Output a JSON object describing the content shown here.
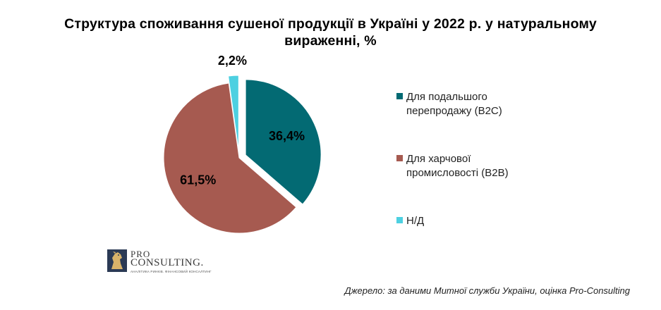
{
  "title": {
    "line1": "Структура  споживання  сушеної  продукції  в Україні  у 2022 р.  у натуральному",
    "line2": "вираженні,  %"
  },
  "chart_data": {
    "type": "pie",
    "title": "Структура  споживання  сушеної  продукції  в Україні  у 2022 р.  у натуральному вираженні,  %",
    "slices": [
      {
        "name": "Для подальшого перепродажу (B2C)",
        "value": 36.4,
        "label": "36,4%",
        "color": "#036a73"
      },
      {
        "name": "Для харчової промисловості (B2B)",
        "value": 61.5,
        "label": "61,5%",
        "color": "#a65a50"
      },
      {
        "name": "Н/Д",
        "value": 2.2,
        "label": "2,2%",
        "color": "#4dd0e1"
      }
    ],
    "legend_position": "right"
  },
  "legend": {
    "items": [
      {
        "line1": "Для подальшого",
        "line2": "перепродажу (B2C)",
        "color": "#036a73"
      },
      {
        "line1": "Для харчової",
        "line2": "промисловості (B2B)",
        "color": "#a65a50"
      },
      {
        "line1": "Н/Д",
        "line2": "",
        "color": "#4dd0e1"
      }
    ]
  },
  "logo": {
    "pro": "PRO",
    "name": "CONSULTING.",
    "tagline": "АНАЛІТИКА РИНКІВ. ФІНАНСОВИЙ КОНСАЛТИНГ",
    "icon": "horse-logo-icon"
  },
  "source": "Джерело: за даними Митної служби України, оцінка Pro-Consulting"
}
